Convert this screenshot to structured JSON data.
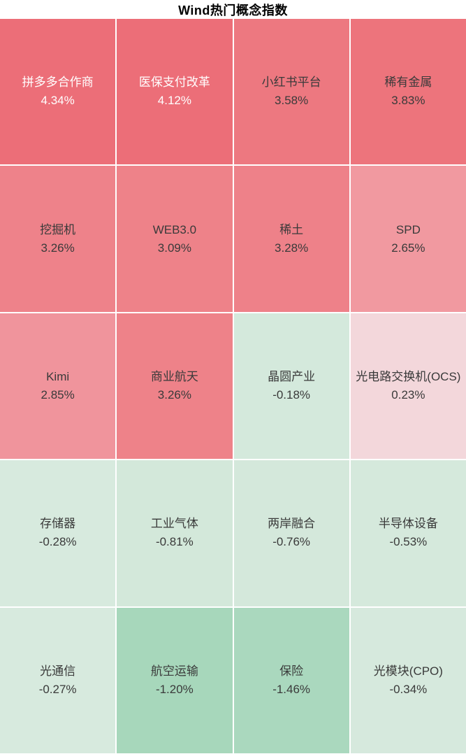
{
  "header": {
    "title": "Wind热门概念指数"
  },
  "colors": {
    "background": "#ffffff",
    "grid_gap": "#ffffff",
    "title_text": "#000000",
    "dark_text": "#3a3a3a",
    "light_text": "#ffffff",
    "strong_up": "#ec6e78",
    "up": "#ee8289",
    "weak_up": "#f3d7db",
    "weak_down": "#d6e9dd",
    "down": "#a8d8bc"
  },
  "chart_data": {
    "type": "heatmap",
    "title": "Wind热门概念指数",
    "layout": {
      "columns": 4,
      "rows": 5,
      "legend": "none",
      "color_scale": "red = gain, green = loss"
    },
    "cells": [
      {
        "name": "拼多多合作商",
        "value": 4.34,
        "pct": "4.34%",
        "bg": "#ec6e78",
        "text_color": "#ffffff"
      },
      {
        "name": "医保支付改革",
        "value": 4.12,
        "pct": "4.12%",
        "bg": "#ec6e78",
        "text_color": "#ffffff"
      },
      {
        "name": "小红书平台",
        "value": 3.58,
        "pct": "3.58%",
        "bg": "#ed7880",
        "text_color": "#3a3a3a"
      },
      {
        "name": "稀有金属",
        "value": 3.83,
        "pct": "3.83%",
        "bg": "#ed747c",
        "text_color": "#3a3a3a"
      },
      {
        "name": "挖掘机",
        "value": 3.26,
        "pct": "3.26%",
        "bg": "#ee828a",
        "text_color": "#3a3a3a"
      },
      {
        "name": "WEB3.0",
        "value": 3.09,
        "pct": "3.09%",
        "bg": "#ee8289",
        "text_color": "#3a3a3a"
      },
      {
        "name": "稀土",
        "value": 3.28,
        "pct": "3.28%",
        "bg": "#ee8189",
        "text_color": "#3a3a3a"
      },
      {
        "name": "SPD",
        "value": 2.65,
        "pct": "2.65%",
        "bg": "#f199a0",
        "text_color": "#3a3a3a"
      },
      {
        "name": "Kimi",
        "value": 2.85,
        "pct": "2.85%",
        "bg": "#f0949c",
        "text_color": "#3a3a3a"
      },
      {
        "name": "商业航天",
        "value": 3.26,
        "pct": "3.26%",
        "bg": "#ee8289",
        "text_color": "#3a3a3a"
      },
      {
        "name": "晶圆产业",
        "value": -0.18,
        "pct": "-0.18%",
        "bg": "#d4e9dc",
        "text_color": "#3a3a3a"
      },
      {
        "name": "光电路交换机(OCS)",
        "value": 0.23,
        "pct": "0.23%",
        "bg": "#f3d7db",
        "text_color": "#3a3a3a"
      },
      {
        "name": "存储器",
        "value": -0.28,
        "pct": "-0.28%",
        "bg": "#d7eade",
        "text_color": "#3a3a3a"
      },
      {
        "name": "工业气体",
        "value": -0.81,
        "pct": "-0.81%",
        "bg": "#d3e8da",
        "text_color": "#3a3a3a"
      },
      {
        "name": "两岸融合",
        "value": -0.76,
        "pct": "-0.76%",
        "bg": "#d4e8db",
        "text_color": "#3a3a3a"
      },
      {
        "name": "半导体设备",
        "value": -0.53,
        "pct": "-0.53%",
        "bg": "#d5e9dc",
        "text_color": "#3a3a3a"
      },
      {
        "name": "光通信",
        "value": -0.27,
        "pct": "-0.27%",
        "bg": "#d7eade",
        "text_color": "#3a3a3a"
      },
      {
        "name": "航空运输",
        "value": -1.2,
        "pct": "-1.20%",
        "bg": "#a7d7bb",
        "text_color": "#3a3a3a"
      },
      {
        "name": "保险",
        "value": -1.46,
        "pct": "-1.46%",
        "bg": "#aad8be",
        "text_color": "#3a3a3a"
      },
      {
        "name": "光模块(CPO)",
        "value": -0.34,
        "pct": "-0.34%",
        "bg": "#d6e9dd",
        "text_color": "#3a3a3a"
      }
    ]
  }
}
